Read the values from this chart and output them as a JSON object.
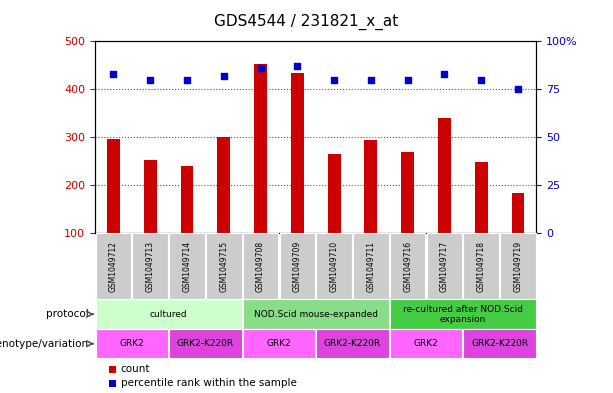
{
  "title": "GDS4544 / 231821_x_at",
  "samples": [
    "GSM1049712",
    "GSM1049713",
    "GSM1049714",
    "GSM1049715",
    "GSM1049708",
    "GSM1049709",
    "GSM1049710",
    "GSM1049711",
    "GSM1049716",
    "GSM1049717",
    "GSM1049718",
    "GSM1049719"
  ],
  "counts": [
    295,
    252,
    239,
    299,
    452,
    433,
    265,
    293,
    269,
    340,
    248,
    182
  ],
  "percentiles": [
    83,
    80,
    80,
    82,
    86,
    87,
    80,
    80,
    80,
    83,
    80,
    75
  ],
  "ylim_left": [
    100,
    500
  ],
  "ylim_right": [
    0,
    100
  ],
  "yticks_left": [
    100,
    200,
    300,
    400,
    500
  ],
  "yticks_right": [
    0,
    25,
    50,
    75,
    100
  ],
  "ytick_labels_right": [
    "0",
    "25",
    "50",
    "75",
    "100%"
  ],
  "bar_color": "#cc0000",
  "dot_color": "#0000cc",
  "bar_width": 0.35,
  "protocol_groups": [
    {
      "label": "cultured",
      "start": 0,
      "end": 3,
      "color": "#ccffcc"
    },
    {
      "label": "NOD.Scid mouse-expanded",
      "start": 4,
      "end": 7,
      "color": "#88dd88"
    },
    {
      "label": "re-cultured after NOD.Scid\nexpansion",
      "start": 8,
      "end": 11,
      "color": "#44cc44"
    }
  ],
  "genotype_groups": [
    {
      "label": "GRK2",
      "start": 0,
      "end": 1,
      "color": "#ff66ff"
    },
    {
      "label": "GRK2-K220R",
      "start": 2,
      "end": 3,
      "color": "#dd44dd"
    },
    {
      "label": "GRK2",
      "start": 4,
      "end": 5,
      "color": "#ff66ff"
    },
    {
      "label": "GRK2-K220R",
      "start": 6,
      "end": 7,
      "color": "#dd44dd"
    },
    {
      "label": "GRK2",
      "start": 8,
      "end": 9,
      "color": "#ff66ff"
    },
    {
      "label": "GRK2-K220R",
      "start": 10,
      "end": 11,
      "color": "#dd44dd"
    }
  ],
  "row_label_protocol": "protocol",
  "row_label_genotype": "genotype/variation",
  "legend_count_label": "count",
  "legend_percentile_label": "percentile rank within the sample",
  "bg_color": "#ffffff",
  "grid_color": "#555555",
  "tick_label_color_left": "#cc0000",
  "tick_label_color_right": "#0000cc",
  "sample_bg_color": "#cccccc",
  "sample_border_color": "#999999"
}
